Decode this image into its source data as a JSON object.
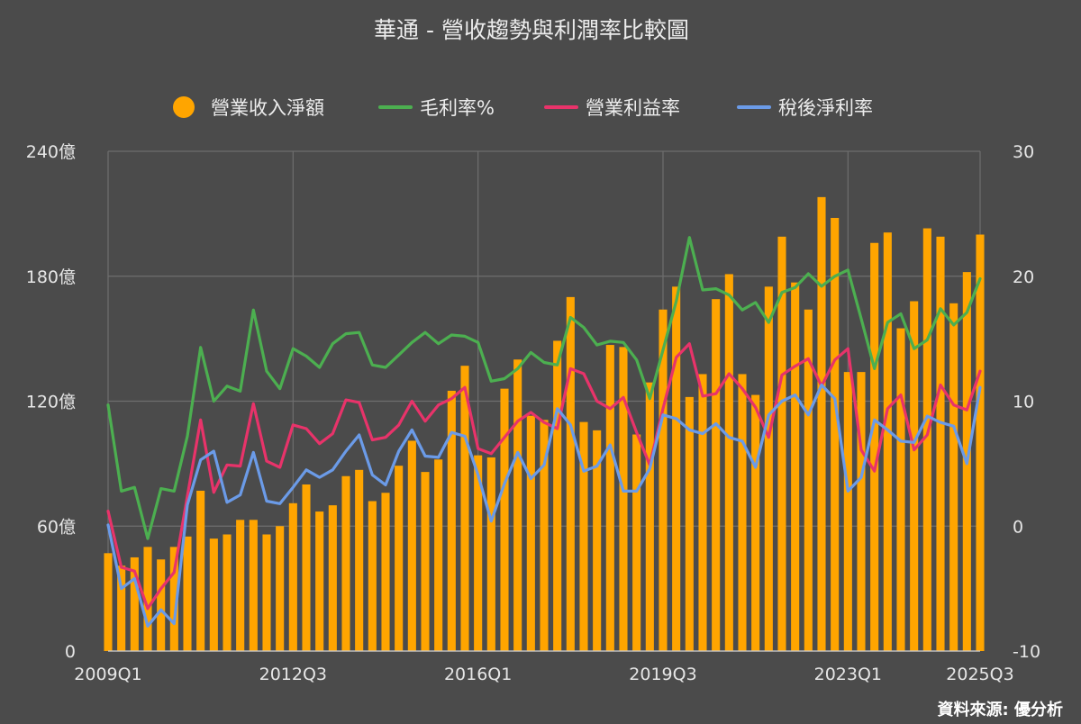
{
  "chart_data": {
    "type": "bar+line",
    "title": "華通 - 營收趨勢與利潤率比較圖",
    "source_note": "資料來源: 優分析",
    "x": [
      "2009Q1",
      "2009Q2",
      "2009Q3",
      "2009Q4",
      "2010Q1",
      "2010Q2",
      "2010Q3",
      "2010Q4",
      "2011Q1",
      "2011Q2",
      "2011Q3",
      "2011Q4",
      "2012Q1",
      "2012Q2",
      "2012Q3",
      "2012Q4",
      "2013Q1",
      "2013Q2",
      "2013Q3",
      "2013Q4",
      "2014Q1",
      "2014Q2",
      "2014Q3",
      "2014Q4",
      "2015Q1",
      "2015Q2",
      "2015Q3",
      "2015Q4",
      "2016Q1",
      "2016Q2",
      "2016Q3",
      "2016Q4",
      "2017Q1",
      "2017Q2",
      "2017Q3",
      "2017Q4",
      "2018Q1",
      "2018Q2",
      "2018Q3",
      "2018Q4",
      "2019Q1",
      "2019Q2",
      "2019Q3",
      "2019Q4",
      "2020Q1",
      "2020Q2",
      "2020Q3",
      "2020Q4",
      "2021Q1",
      "2021Q2",
      "2021Q3",
      "2021Q4",
      "2022Q1",
      "2022Q2",
      "2022Q3",
      "2022Q4",
      "2023Q1",
      "2023Q2",
      "2023Q3",
      "2023Q4",
      "2024Q1",
      "2024Q2",
      "2024Q3",
      "2024Q4",
      "2025Q1",
      "2025Q2",
      "2025Q3"
    ],
    "x_tick_labels": [
      "2009Q1",
      "2012Q3",
      "2016Q1",
      "2019Q3",
      "2023Q1",
      "2025Q3"
    ],
    "left_axis": {
      "range": [
        0,
        240
      ],
      "ticks": [
        "0",
        "60億",
        "120億",
        "180億",
        "240億"
      ],
      "tick_values": [
        0,
        60,
        120,
        180,
        240
      ]
    },
    "right_axis": {
      "range": [
        -10,
        30
      ],
      "ticks": [
        "-10",
        "0",
        "10",
        "20",
        "30"
      ],
      "tick_values": [
        -10,
        0,
        10,
        20,
        30
      ]
    },
    "grid": true,
    "legend_position": "top-center",
    "series": [
      {
        "name": "營業收入淨額",
        "type": "bar",
        "axis": "left",
        "color": "#FFA500",
        "values": [
          47,
          41,
          45,
          50,
          44,
          50,
          55,
          77,
          54,
          56,
          63,
          63,
          56,
          60,
          71,
          80,
          67,
          70,
          84,
          87,
          72,
          76,
          89,
          101,
          86,
          92,
          125,
          137,
          94,
          93,
          126,
          140,
          113,
          111,
          149,
          170,
          110,
          106,
          147,
          146,
          104,
          129,
          164,
          175,
          122,
          133,
          169,
          181,
          133,
          123,
          175,
          199,
          177,
          164,
          218,
          208,
          134,
          134,
          196,
          201,
          155,
          168,
          203,
          199,
          167,
          182,
          200
        ]
      },
      {
        "name": "毛利率%",
        "type": "line",
        "axis": "right",
        "color": "#4CAF50",
        "values": [
          9.7,
          2.8,
          3.1,
          -1.0,
          3.0,
          2.8,
          7.2,
          14.3,
          10.0,
          11.2,
          10.8,
          17.3,
          12.4,
          11.0,
          14.2,
          13.6,
          12.7,
          14.6,
          15.4,
          15.5,
          12.9,
          12.7,
          13.7,
          14.7,
          15.5,
          14.6,
          15.3,
          15.2,
          14.7,
          11.6,
          11.8,
          12.6,
          13.9,
          13.1,
          12.9,
          16.7,
          15.9,
          14.5,
          14.8,
          14.7,
          13.3,
          10.2,
          14.1,
          18.0,
          23.1,
          18.9,
          19.0,
          18.5,
          17.3,
          17.9,
          16.3,
          18.7,
          19.1,
          20.2,
          19.2,
          20.0,
          20.5,
          16.6,
          12.6,
          16.3,
          17.0,
          14.2,
          14.9,
          17.4,
          16.1,
          17.1,
          19.8
        ]
      },
      {
        "name": "營業利益率",
        "type": "line",
        "axis": "right",
        "color": "#E8336A",
        "values": [
          1.2,
          -3.3,
          -3.6,
          -6.6,
          -5.0,
          -3.7,
          2.4,
          8.5,
          2.7,
          4.9,
          4.8,
          9.8,
          5.2,
          4.7,
          8.1,
          7.8,
          6.6,
          7.4,
          10.1,
          9.9,
          6.9,
          7.1,
          8.1,
          10.0,
          8.4,
          9.7,
          10.2,
          11.1,
          6.2,
          5.8,
          7.1,
          8.4,
          9.1,
          8.3,
          7.8,
          12.6,
          12.2,
          10.0,
          9.4,
          10.3,
          7.5,
          4.9,
          9.4,
          13.5,
          14.6,
          10.4,
          10.6,
          12.2,
          11.0,
          9.5,
          7.1,
          12.1,
          12.8,
          13.4,
          11.2,
          13.3,
          14.2,
          6.1,
          4.4,
          9.4,
          10.5,
          6.1,
          7.3,
          11.3,
          9.7,
          9.3,
          12.4
        ]
      },
      {
        "name": "稅後淨利率",
        "type": "line",
        "axis": "right",
        "color": "#6B9BE8",
        "values": [
          0.1,
          -5.0,
          -4.2,
          -8.0,
          -6.7,
          -7.8,
          1.7,
          5.3,
          6.0,
          1.9,
          2.5,
          5.9,
          2.0,
          1.8,
          3.1,
          4.5,
          3.9,
          4.5,
          6.0,
          7.3,
          4.1,
          3.3,
          6.0,
          7.7,
          5.6,
          5.5,
          7.5,
          7.2,
          4.1,
          0.4,
          3.4,
          5.9,
          3.8,
          4.9,
          9.4,
          8.1,
          4.4,
          4.8,
          6.5,
          2.8,
          2.8,
          4.6,
          8.9,
          8.6,
          7.7,
          7.4,
          8.2,
          7.1,
          6.8,
          4.7,
          8.9,
          10.0,
          10.5,
          8.9,
          11.3,
          10.2,
          2.8,
          3.9,
          8.5,
          7.7,
          6.8,
          6.7,
          8.8,
          8.3,
          8.0,
          5.0,
          11.1
        ]
      }
    ]
  }
}
